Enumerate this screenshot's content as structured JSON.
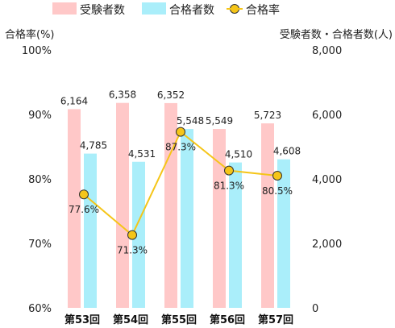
{
  "legend": {
    "items": [
      {
        "label": "受験者数",
        "color": "#ffc8c8",
        "kind": "rect"
      },
      {
        "label": "合格者数",
        "color": "#aaeefa",
        "kind": "rect"
      },
      {
        "label": "合格率",
        "color": "#f5c518",
        "kind": "marker"
      }
    ]
  },
  "axes": {
    "left_title": "合格率(%)",
    "right_title": "受験者数・合格者数(人)"
  },
  "chart_data": {
    "type": "bar",
    "categories": [
      "第53回",
      "第54回",
      "第55回",
      "第56回",
      "第57回"
    ],
    "series": [
      {
        "name": "受験者数",
        "axis": "right",
        "color": "#ffc8c8",
        "values": [
          6164,
          6358,
          6352,
          5549,
          5723
        ],
        "labels": [
          "6,164",
          "6,358",
          "6,352",
          "5,549",
          "5,723"
        ]
      },
      {
        "name": "合格者数",
        "axis": "right",
        "color": "#aaeefa",
        "values": [
          4785,
          4531,
          5548,
          4510,
          4608
        ],
        "labels": [
          "4,785",
          "4,531",
          "5,548",
          "4,510",
          "4,608"
        ]
      },
      {
        "name": "合格率",
        "type": "line",
        "axis": "left",
        "color": "#f5c518",
        "values": [
          77.6,
          71.3,
          87.3,
          81.3,
          80.5
        ],
        "labels": [
          "77.6%",
          "71.3%",
          "87.3%",
          "81.3%",
          "80.5%"
        ]
      }
    ],
    "left_axis": {
      "title": "合格率(%)",
      "range": [
        60,
        100
      ],
      "ticks": [
        "60%",
        "70%",
        "80%",
        "90%",
        "100%"
      ]
    },
    "right_axis": {
      "title": "受験者数・合格者数(人)",
      "range": [
        0,
        8000
      ],
      "ticks": [
        "0",
        "2,000",
        "4,000",
        "6,000",
        "8,000"
      ]
    },
    "grid": false,
    "legend_position": "top"
  }
}
